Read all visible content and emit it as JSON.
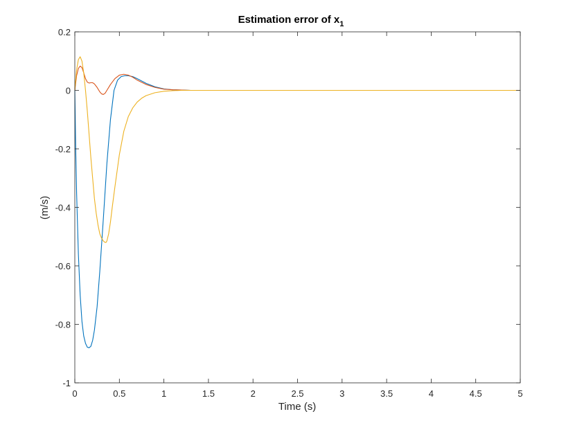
{
  "chart_data": {
    "type": "line",
    "title": "Estimation error of x",
    "title_subscript": "1",
    "xlabel": "Time (s)",
    "ylabel": "(m/s)",
    "xlim": [
      0,
      5
    ],
    "ylim": [
      -1,
      0.2
    ],
    "xticks": [
      0,
      0.5,
      1,
      1.5,
      2,
      2.5,
      3,
      3.5,
      4,
      4.5,
      5
    ],
    "xtick_labels": [
      "0",
      "0.5",
      "1",
      "1.5",
      "2",
      "2.5",
      "3",
      "3.5",
      "4",
      "4.5",
      "5"
    ],
    "yticks": [
      -1,
      -0.8,
      -0.6,
      -0.4,
      -0.2,
      0,
      0.2
    ],
    "ytick_labels": [
      "-1",
      "-0.8",
      "-0.6",
      "-0.4",
      "-0.2",
      "0",
      "0.2"
    ],
    "grid": false,
    "box": true,
    "colors": {
      "axis": "#262626",
      "background": "#ffffff"
    },
    "series": [
      {
        "color": "#0072BD",
        "x": [
          0,
          0.01,
          0.02,
          0.04,
          0.06,
          0.08,
          0.1,
          0.12,
          0.14,
          0.16,
          0.18,
          0.2,
          0.22,
          0.25,
          0.28,
          0.32,
          0.36,
          0.4,
          0.44,
          0.48,
          0.52,
          0.56,
          0.6,
          0.65,
          0.7,
          0.75,
          0.8,
          0.9,
          1.0,
          1.1,
          1.2,
          1.3,
          1.5,
          2,
          3,
          4,
          5
        ],
        "y": [
          0,
          -0.2,
          -0.35,
          -0.56,
          -0.7,
          -0.79,
          -0.84,
          -0.865,
          -0.878,
          -0.88,
          -0.875,
          -0.855,
          -0.82,
          -0.74,
          -0.62,
          -0.44,
          -0.25,
          -0.1,
          0.0,
          0.035,
          0.047,
          0.05,
          0.05,
          0.047,
          0.04,
          0.032,
          0.024,
          0.012,
          0.005,
          0.002,
          0.001,
          0,
          0,
          0,
          0,
          0,
          0
        ]
      },
      {
        "color": "#D95319",
        "x": [
          0,
          0.02,
          0.04,
          0.06,
          0.08,
          0.1,
          0.12,
          0.14,
          0.16,
          0.18,
          0.2,
          0.22,
          0.25,
          0.28,
          0.3,
          0.32,
          0.34,
          0.36,
          0.4,
          0.45,
          0.5,
          0.55,
          0.6,
          0.65,
          0.7,
          0.8,
          0.9,
          1.0,
          1.1,
          1.2,
          1.3,
          1.5,
          2,
          3,
          4,
          5
        ],
        "y": [
          0,
          0.05,
          0.075,
          0.083,
          0.078,
          0.06,
          0.04,
          0.028,
          0.025,
          0.026,
          0.026,
          0.022,
          0.01,
          -0.005,
          -0.012,
          -0.014,
          -0.01,
          0.0,
          0.02,
          0.04,
          0.052,
          0.055,
          0.052,
          0.045,
          0.035,
          0.02,
          0.01,
          0.004,
          0.002,
          0.001,
          0,
          0,
          0,
          0,
          0,
          0
        ]
      },
      {
        "color": "#EDB120",
        "x": [
          0,
          0.02,
          0.04,
          0.06,
          0.08,
          0.1,
          0.12,
          0.14,
          0.16,
          0.18,
          0.2,
          0.22,
          0.24,
          0.26,
          0.28,
          0.3,
          0.32,
          0.34,
          0.35,
          0.36,
          0.38,
          0.4,
          0.42,
          0.45,
          0.5,
          0.55,
          0.6,
          0.65,
          0.7,
          0.75,
          0.8,
          0.9,
          1.0,
          1.1,
          1.2,
          1.3,
          1.5,
          2,
          3,
          4,
          5
        ],
        "y": [
          0,
          0.07,
          0.105,
          0.115,
          0.1,
          0.06,
          0.0,
          -0.07,
          -0.15,
          -0.23,
          -0.3,
          -0.37,
          -0.42,
          -0.46,
          -0.49,
          -0.505,
          -0.515,
          -0.52,
          -0.52,
          -0.515,
          -0.49,
          -0.45,
          -0.4,
          -0.33,
          -0.22,
          -0.14,
          -0.09,
          -0.06,
          -0.04,
          -0.027,
          -0.018,
          -0.008,
          -0.003,
          -0.001,
          0,
          0,
          0,
          0,
          0,
          0,
          0
        ]
      }
    ]
  }
}
